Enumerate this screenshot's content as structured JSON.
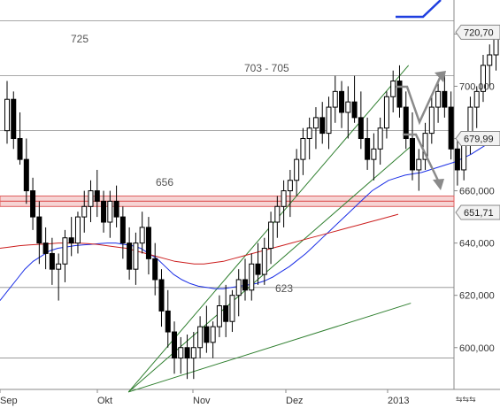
{
  "chart_data": {
    "type": "candlestick",
    "x_ticks": [
      "Sep",
      "Okt",
      "Nov",
      "Dez",
      "2013"
    ],
    "y_ticks": [
      "720,000",
      "700,000",
      "680,000",
      "660,000",
      "640,000",
      "620,000",
      "600,000"
    ],
    "ylim": [
      584,
      733
    ],
    "horizontal_levels": [
      {
        "value": 725,
        "label": "725",
        "color": "#8c8c8c"
      },
      {
        "value": 704,
        "label": "703 - 705",
        "color": "#8c8c8c"
      },
      {
        "value": 656,
        "label": "656",
        "color": "#e06060",
        "zone": [
          654,
          658
        ]
      },
      {
        "value": 623,
        "label": "623",
        "color": "#8c8c8c"
      },
      {
        "value": 683,
        "label": "",
        "color": "#8c8c8c"
      },
      {
        "value": 596,
        "label": "",
        "color": "#8c8c8c"
      }
    ],
    "price_tags": [
      {
        "value": 720.7,
        "label": "720,70"
      },
      {
        "value": 679.99,
        "label": "679,99"
      },
      {
        "value": 651.71,
        "label": "651,71"
      }
    ],
    "ohlc": [
      {
        "o": 683,
        "h": 702,
        "l": 678,
        "c": 695
      },
      {
        "o": 695,
        "h": 698,
        "l": 676,
        "c": 680
      },
      {
        "o": 680,
        "h": 690,
        "l": 670,
        "c": 672
      },
      {
        "o": 672,
        "h": 680,
        "l": 655,
        "c": 660
      },
      {
        "o": 660,
        "h": 665,
        "l": 645,
        "c": 650
      },
      {
        "o": 650,
        "h": 656,
        "l": 632,
        "c": 640
      },
      {
        "o": 640,
        "h": 646,
        "l": 630,
        "c": 636
      },
      {
        "o": 636,
        "h": 642,
        "l": 624,
        "c": 630
      },
      {
        "o": 630,
        "h": 636,
        "l": 618,
        "c": 632
      },
      {
        "o": 632,
        "h": 645,
        "l": 625,
        "c": 642
      },
      {
        "o": 642,
        "h": 650,
        "l": 635,
        "c": 640
      },
      {
        "o": 640,
        "h": 652,
        "l": 636,
        "c": 650
      },
      {
        "o": 650,
        "h": 660,
        "l": 644,
        "c": 654
      },
      {
        "o": 654,
        "h": 664,
        "l": 648,
        "c": 660
      },
      {
        "o": 660,
        "h": 668,
        "l": 650,
        "c": 656
      },
      {
        "o": 656,
        "h": 660,
        "l": 644,
        "c": 648
      },
      {
        "o": 648,
        "h": 660,
        "l": 642,
        "c": 656
      },
      {
        "o": 656,
        "h": 662,
        "l": 646,
        "c": 650
      },
      {
        "o": 650,
        "h": 654,
        "l": 634,
        "c": 640
      },
      {
        "o": 640,
        "h": 646,
        "l": 626,
        "c": 630
      },
      {
        "o": 630,
        "h": 644,
        "l": 624,
        "c": 640
      },
      {
        "o": 640,
        "h": 652,
        "l": 636,
        "c": 646
      },
      {
        "o": 646,
        "h": 650,
        "l": 628,
        "c": 634
      },
      {
        "o": 634,
        "h": 640,
        "l": 620,
        "c": 626
      },
      {
        "o": 626,
        "h": 630,
        "l": 608,
        "c": 614
      },
      {
        "o": 614,
        "h": 622,
        "l": 600,
        "c": 606
      },
      {
        "o": 606,
        "h": 610,
        "l": 590,
        "c": 596
      },
      {
        "o": 596,
        "h": 604,
        "l": 590,
        "c": 600
      },
      {
        "o": 600,
        "h": 605,
        "l": 588,
        "c": 596
      },
      {
        "o": 596,
        "h": 606,
        "l": 588,
        "c": 600
      },
      {
        "o": 600,
        "h": 612,
        "l": 596,
        "c": 608
      },
      {
        "o": 608,
        "h": 616,
        "l": 598,
        "c": 602
      },
      {
        "o": 602,
        "h": 610,
        "l": 596,
        "c": 608
      },
      {
        "o": 608,
        "h": 620,
        "l": 604,
        "c": 616
      },
      {
        "o": 616,
        "h": 624,
        "l": 604,
        "c": 610
      },
      {
        "o": 610,
        "h": 622,
        "l": 606,
        "c": 620
      },
      {
        "o": 620,
        "h": 630,
        "l": 612,
        "c": 626
      },
      {
        "o": 626,
        "h": 634,
        "l": 618,
        "c": 622
      },
      {
        "o": 622,
        "h": 636,
        "l": 618,
        "c": 632
      },
      {
        "o": 632,
        "h": 640,
        "l": 624,
        "c": 628
      },
      {
        "o": 628,
        "h": 642,
        "l": 624,
        "c": 638
      },
      {
        "o": 638,
        "h": 652,
        "l": 632,
        "c": 648
      },
      {
        "o": 648,
        "h": 658,
        "l": 642,
        "c": 654
      },
      {
        "o": 654,
        "h": 664,
        "l": 646,
        "c": 660
      },
      {
        "o": 660,
        "h": 668,
        "l": 650,
        "c": 664
      },
      {
        "o": 664,
        "h": 676,
        "l": 658,
        "c": 672
      },
      {
        "o": 672,
        "h": 684,
        "l": 666,
        "c": 680
      },
      {
        "o": 680,
        "h": 688,
        "l": 672,
        "c": 684
      },
      {
        "o": 684,
        "h": 692,
        "l": 676,
        "c": 688
      },
      {
        "o": 688,
        "h": 694,
        "l": 678,
        "c": 682
      },
      {
        "o": 682,
        "h": 696,
        "l": 676,
        "c": 692
      },
      {
        "o": 692,
        "h": 704,
        "l": 686,
        "c": 698
      },
      {
        "o": 698,
        "h": 702,
        "l": 684,
        "c": 690
      },
      {
        "o": 690,
        "h": 700,
        "l": 680,
        "c": 694
      },
      {
        "o": 694,
        "h": 704,
        "l": 686,
        "c": 688
      },
      {
        "o": 688,
        "h": 698,
        "l": 676,
        "c": 680
      },
      {
        "o": 680,
        "h": 688,
        "l": 668,
        "c": 672
      },
      {
        "o": 672,
        "h": 682,
        "l": 664,
        "c": 676
      },
      {
        "o": 676,
        "h": 688,
        "l": 670,
        "c": 684
      },
      {
        "o": 684,
        "h": 698,
        "l": 680,
        "c": 696
      },
      {
        "o": 696,
        "h": 706,
        "l": 690,
        "c": 702
      },
      {
        "o": 702,
        "h": 708,
        "l": 688,
        "c": 692
      },
      {
        "o": 692,
        "h": 698,
        "l": 676,
        "c": 680
      },
      {
        "o": 680,
        "h": 690,
        "l": 664,
        "c": 668
      },
      {
        "o": 668,
        "h": 676,
        "l": 660,
        "c": 672
      },
      {
        "o": 672,
        "h": 686,
        "l": 668,
        "c": 682
      },
      {
        "o": 682,
        "h": 696,
        "l": 678,
        "c": 692
      },
      {
        "o": 692,
        "h": 702,
        "l": 686,
        "c": 698
      },
      {
        "o": 698,
        "h": 704,
        "l": 688,
        "c": 692
      },
      {
        "o": 692,
        "h": 698,
        "l": 672,
        "c": 676
      },
      {
        "o": 676,
        "h": 680,
        "l": 662,
        "c": 668
      },
      {
        "o": 668,
        "h": 682,
        "l": 664,
        "c": 678
      },
      {
        "o": 678,
        "h": 696,
        "l": 674,
        "c": 692
      },
      {
        "o": 692,
        "h": 700,
        "l": 684,
        "c": 698
      },
      {
        "o": 698,
        "h": 712,
        "l": 694,
        "c": 708
      },
      {
        "o": 708,
        "h": 716,
        "l": 700,
        "c": 712
      },
      {
        "o": 712,
        "h": 722,
        "l": 706,
        "c": 720
      }
    ],
    "moving_averages": [
      {
        "color": "#1a2ee6",
        "values": [
          618,
          622,
          626,
          630,
          633,
          635,
          637,
          638,
          638.5,
          639,
          639.3,
          639.5,
          639.8,
          640,
          640,
          639.5,
          639,
          638,
          636,
          634,
          631,
          628,
          626,
          624.5,
          623.5,
          623,
          622.5,
          622.5,
          623,
          623.5,
          624,
          624.5,
          625.5,
          627,
          629,
          631,
          633.5,
          636,
          639,
          642,
          645,
          648,
          651,
          654,
          657,
          660,
          662,
          664,
          665,
          666,
          666.5,
          667,
          668,
          669,
          670,
          671,
          672.5,
          674,
          676,
          678,
          680
        ]
      },
      {
        "color": "#cc1f1f",
        "values": [
          638,
          638.5,
          639,
          639.3,
          639.5,
          639.7,
          640,
          640,
          640,
          639.8,
          639.5,
          639,
          638.5,
          638,
          637,
          636,
          635,
          634,
          633,
          632.5,
          632,
          632,
          632.5,
          633,
          634,
          635,
          636,
          637,
          638,
          639,
          640,
          641,
          642,
          643,
          644,
          645,
          646,
          647,
          648,
          649,
          650,
          651
        ]
      }
    ],
    "trendlines": [
      {
        "color": "#2f7f2f",
        "from": [
          0.283,
          583
        ],
        "to": [
          0.9,
          708
        ]
      },
      {
        "color": "#2f7f2f",
        "from": [
          0.283,
          583
        ],
        "to": [
          0.905,
          677
        ]
      },
      {
        "color": "#2f7f2f",
        "from": [
          0.283,
          583
        ],
        "to": [
          0.905,
          617
        ]
      }
    ]
  },
  "footer": {
    "nav_arrows": "⇆⇆⇆"
  }
}
